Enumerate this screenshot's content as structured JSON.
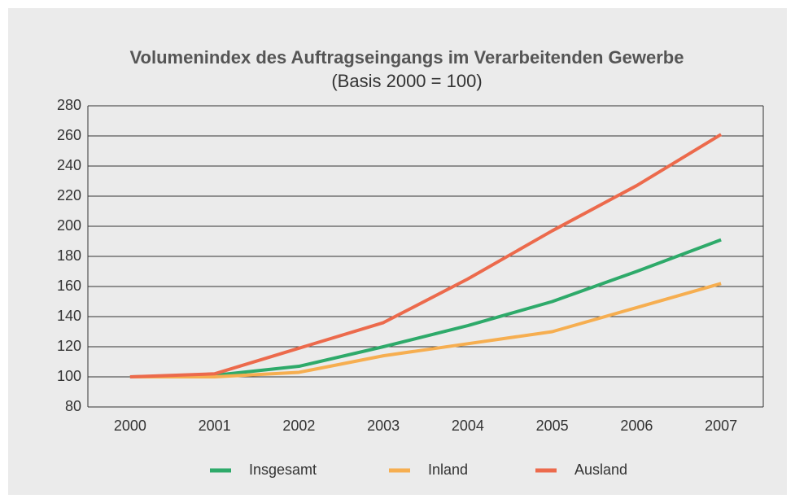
{
  "chart_data": {
    "type": "line",
    "title": "Volumenindex des Auftragseingangs im Verarbeitenden Gewerbe",
    "subtitle": "(Basis 2000 = 100)",
    "categories": [
      "2000",
      "2001",
      "2002",
      "2003",
      "2004",
      "2005",
      "2006",
      "2007"
    ],
    "series": [
      {
        "name": "Insgesamt",
        "color": "#2eaa6a",
        "values": [
          100,
          101,
          107,
          120,
          134,
          150,
          170,
          191
        ]
      },
      {
        "name": "Inland",
        "color": "#f6ae50",
        "values": [
          100,
          100,
          103,
          114,
          122,
          130,
          146,
          162
        ]
      },
      {
        "name": "Ausland",
        "color": "#ec6a4c",
        "values": [
          100,
          102,
          119,
          136,
          165,
          197,
          227,
          261
        ]
      }
    ],
    "ylim": [
      80,
      280
    ],
    "yticks": [
      80,
      100,
      120,
      140,
      160,
      180,
      200,
      220,
      240,
      260,
      280
    ],
    "grid": true,
    "legend": "bottom"
  }
}
